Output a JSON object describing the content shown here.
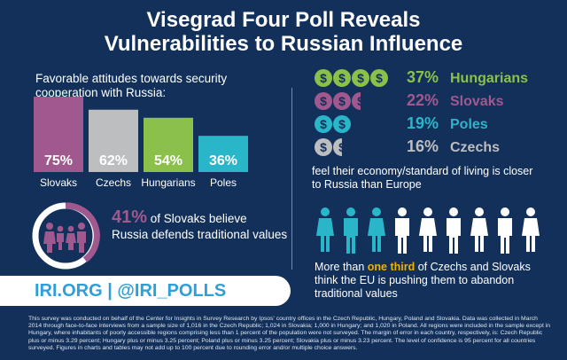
{
  "title_line1": "Visegrad Four Poll Reveals",
  "title_line2": "Vulnerabilities to Russian Influence",
  "left": {
    "heading": "Favorable attitudes towards security cooperation with Russia:"
  },
  "chart_data": {
    "type": "bar",
    "categories": [
      "Slovaks",
      "Czechs",
      "Hungarians",
      "Poles"
    ],
    "values": [
      75,
      62,
      54,
      36
    ],
    "value_labels": [
      "75%",
      "62%",
      "54%",
      "36%"
    ],
    "colors": [
      "#a0598f",
      "#bcbec0",
      "#8bc04a",
      "#2ab6c9"
    ]
  },
  "slovak_stat": {
    "pct": "41%",
    "text_a": "of Slovaks believe",
    "text_b": "Russia defends traditional values"
  },
  "cta": {
    "text": "IRI.ORG | @IRI_POLLS"
  },
  "economy": {
    "rows": [
      {
        "pct": "37%",
        "group": "Hungarians",
        "color": "#8bc04a",
        "coins": 4
      },
      {
        "pct": "22%",
        "group": "Slovaks",
        "color": "#a0598f",
        "coins": 2.5
      },
      {
        "pct": "19%",
        "group": "Poles",
        "color": "#2ab6c9",
        "coins": 2
      },
      {
        "pct": "16%",
        "group": "Czechs",
        "color": "#bcbec0",
        "coins": 1.5
      }
    ],
    "coin_symbol": "$",
    "caption": "feel their economy/standard of living is closer to Russia than Europe"
  },
  "third": {
    "pre": "More than",
    "highlight": "one third",
    "post": "of Czechs and Slovaks think the EU is pushing them to abandon traditional values"
  },
  "footnote": "This survey was conducted on behalf of the Center for Insights in Survey Research by Ipsos' country offices in the Czech Republic, Hungary, Poland and Slovakia. Data was collected in March 2014 through face-to-face interviews from a sample size of 1,016 in the Czech Republic; 1,024 in Slovakia; 1,000 in Hungary; and 1,020 in Poland. All regions were included in the sample except in Hungary, where inhabitants of poorly accessible regions comprising less than 1 percent of the population were not surveyed. The margin of error in each country, respectively, is: Czech Republic plus or minus 3.29 percent; Hungary plus or minus 3.25 percent; Poland plus or minus 3.25 percent; Slovakia plus or minus 3.23 percent. The level of confidence is 95 percent for all countries surveyed. Figures in charts and tables may not add up to 100 percent due to rounding error and/or multiple choice answers."
}
